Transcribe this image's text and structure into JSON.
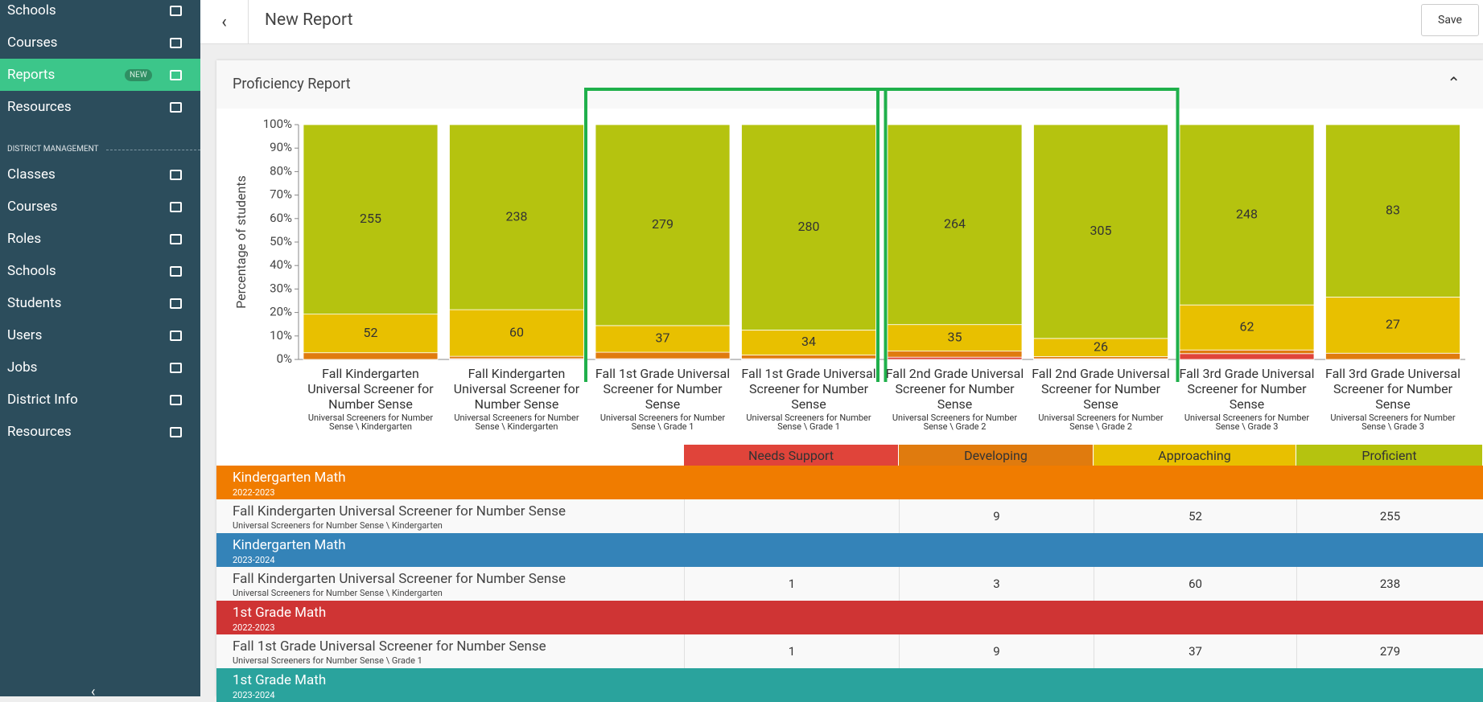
{
  "sidebar": {
    "items": [
      {
        "label": "Schools"
      },
      {
        "label": "Courses"
      },
      {
        "label": "Reports",
        "badge": "NEW",
        "active": true
      },
      {
        "label": "Resources"
      }
    ],
    "section": "DISTRICT MANAGEMENT",
    "section_items": [
      {
        "label": "Classes"
      },
      {
        "label": "Courses"
      },
      {
        "label": "Roles"
      },
      {
        "label": "Schools"
      },
      {
        "label": "Students"
      },
      {
        "label": "Users"
      },
      {
        "label": "Jobs"
      },
      {
        "label": "District Info"
      },
      {
        "label": "Resources"
      }
    ]
  },
  "header": {
    "title": "New Report",
    "save": "Save"
  },
  "panel_title": "Proficiency Report",
  "chart_data": {
    "type": "bar",
    "stacked": "percent",
    "y_label": "Percentage of students",
    "categories": [
      "Fall Kindergarten Universal Screener for Number Sense",
      "Fall Kindergarten Universal Screener for Number Sense",
      "Fall 1st Grade Universal Screener for Number Sense",
      "Fall 1st Grade Universal Screener for Number Sense",
      "Fall 2nd Grade Universal Screener for Number Sense",
      "Fall 2nd Grade Universal Screener for Number Sense",
      "Fall 3rd Grade Universal Screener for Number Sense",
      "Fall 3rd Grade Universal Screener for Number Sense"
    ],
    "subcategories": [
      "Universal Screeners for Number Sense \\ Kindergarten",
      "Universal Screeners for Number Sense \\ Kindergarten",
      "Universal Screeners for Number Sense \\ Grade 1",
      "Universal Screeners for Number Sense \\ Grade 1",
      "Universal Screeners for Number Sense \\ Grade 2",
      "Universal Screeners for Number Sense \\ Grade 2",
      "Universal Screeners for Number Sense \\ Grade 3",
      "Universal Screeners for Number Sense \\ Grade 3"
    ],
    "series": [
      {
        "name": "Needs Support",
        "color": "#e0443a",
        "values": [
          null,
          1,
          1,
          1,
          3,
          1,
          8,
          null
        ]
      },
      {
        "name": "Developing",
        "color": "#e07b0e",
        "values": [
          9,
          3,
          9,
          5,
          8,
          3,
          5,
          3
        ]
      },
      {
        "name": "Approaching",
        "color": "#e8c000",
        "values": [
          52,
          60,
          37,
          34,
          35,
          26,
          62,
          27
        ]
      },
      {
        "name": "Proficient",
        "color": "#b5c30f",
        "values": [
          255,
          238,
          279,
          280,
          264,
          305,
          248,
          83
        ]
      }
    ],
    "ylim": [
      0,
      100
    ],
    "yticks": [
      {
        "value": 0,
        "label": "0%"
      },
      {
        "value": 10,
        "label": "10%"
      },
      {
        "value": 20,
        "label": "20%"
      },
      {
        "value": 30,
        "label": "30%"
      },
      {
        "value": 40,
        "label": "40%"
      },
      {
        "value": 50,
        "label": "50%"
      },
      {
        "value": 60,
        "label": "60%"
      },
      {
        "value": 70,
        "label": "70%"
      },
      {
        "value": 80,
        "label": "80%"
      },
      {
        "value": 90,
        "label": "90%"
      },
      {
        "value": 100,
        "label": "100%"
      }
    ]
  },
  "table": {
    "groups": [
      {
        "name": "Kindergarten Math",
        "year": "2022-2023",
        "color": "#f07c00"
      },
      {
        "name": "Kindergarten Math",
        "year": "2023-2024",
        "color": "#3483b8"
      },
      {
        "name": "1st Grade Math",
        "year": "2022-2023",
        "color": "#cf3434"
      },
      {
        "name": "1st Grade Math",
        "year": "2023-2024",
        "color": "#2aa39d"
      }
    ]
  }
}
